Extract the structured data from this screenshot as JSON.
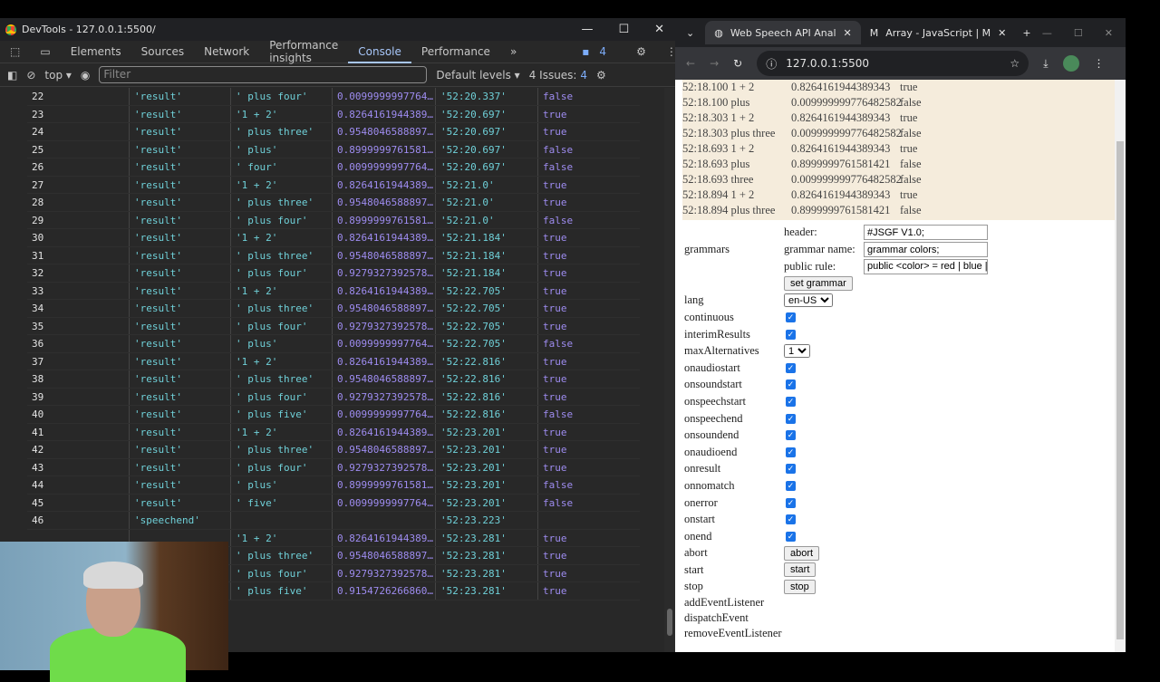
{
  "devtools": {
    "title": "DevTools - 127.0.0.1:5500/",
    "tabs": [
      "Elements",
      "Sources",
      "Network",
      "Performance insights",
      "Console",
      "Performance"
    ],
    "active_tab": "Console",
    "issues_badge": "4",
    "context": "top",
    "filter_placeholder": "Filter",
    "levels": "Default levels",
    "issues_label": "4 Issues:",
    "issues_count": "4",
    "rows": [
      [
        "22",
        "'result'",
        "' plus four'",
        "0.0099999997764…",
        "'52:20.337'",
        "false"
      ],
      [
        "23",
        "'result'",
        "'1 + 2'",
        "0.8264161944389…",
        "'52:20.697'",
        "true"
      ],
      [
        "24",
        "'result'",
        "' plus three'",
        "0.9548046588897…",
        "'52:20.697'",
        "true"
      ],
      [
        "25",
        "'result'",
        "' plus'",
        "0.8999999761581…",
        "'52:20.697'",
        "false"
      ],
      [
        "26",
        "'result'",
        "' four'",
        "0.0099999997764…",
        "'52:20.697'",
        "false"
      ],
      [
        "27",
        "'result'",
        "'1 + 2'",
        "0.8264161944389…",
        "'52:21.0'",
        "true"
      ],
      [
        "28",
        "'result'",
        "' plus three'",
        "0.9548046588897…",
        "'52:21.0'",
        "true"
      ],
      [
        "29",
        "'result'",
        "' plus four'",
        "0.8999999761581…",
        "'52:21.0'",
        "false"
      ],
      [
        "30",
        "'result'",
        "'1 + 2'",
        "0.8264161944389…",
        "'52:21.184'",
        "true"
      ],
      [
        "31",
        "'result'",
        "' plus three'",
        "0.9548046588897…",
        "'52:21.184'",
        "true"
      ],
      [
        "32",
        "'result'",
        "' plus four'",
        "0.9279327392578…",
        "'52:21.184'",
        "true"
      ],
      [
        "33",
        "'result'",
        "'1 + 2'",
        "0.8264161944389…",
        "'52:22.705'",
        "true"
      ],
      [
        "34",
        "'result'",
        "' plus three'",
        "0.9548046588897…",
        "'52:22.705'",
        "true"
      ],
      [
        "35",
        "'result'",
        "' plus four'",
        "0.9279327392578…",
        "'52:22.705'",
        "true"
      ],
      [
        "36",
        "'result'",
        "' plus'",
        "0.0099999997764…",
        "'52:22.705'",
        "false"
      ],
      [
        "37",
        "'result'",
        "'1 + 2'",
        "0.8264161944389…",
        "'52:22.816'",
        "true"
      ],
      [
        "38",
        "'result'",
        "' plus three'",
        "0.9548046588897…",
        "'52:22.816'",
        "true"
      ],
      [
        "39",
        "'result'",
        "' plus four'",
        "0.9279327392578…",
        "'52:22.816'",
        "true"
      ],
      [
        "40",
        "'result'",
        "' plus five'",
        "0.0099999997764…",
        "'52:22.816'",
        "false"
      ],
      [
        "41",
        "'result'",
        "'1 + 2'",
        "0.8264161944389…",
        "'52:23.201'",
        "true"
      ],
      [
        "42",
        "'result'",
        "' plus three'",
        "0.9548046588897…",
        "'52:23.201'",
        "true"
      ],
      [
        "43",
        "'result'",
        "' plus four'",
        "0.9279327392578…",
        "'52:23.201'",
        "true"
      ],
      [
        "44",
        "'result'",
        "' plus'",
        "0.8999999761581…",
        "'52:23.201'",
        "false"
      ],
      [
        "45",
        "'result'",
        "' five'",
        "0.0099999997764…",
        "'52:23.201'",
        "false"
      ],
      [
        "46",
        "'speechend'",
        "",
        "",
        "'52:23.223'",
        ""
      ],
      [
        "",
        "",
        "'1 + 2'",
        "0.8264161944389…",
        "'52:23.281'",
        "true"
      ],
      [
        "",
        "",
        "' plus three'",
        "0.9548046588897…",
        "'52:23.281'",
        "true"
      ],
      [
        "",
        "",
        "' plus four'",
        "0.9279327392578…",
        "'52:23.281'",
        "true"
      ],
      [
        "",
        "",
        "' plus five'",
        "0.9154726266860…",
        "'52:23.281'",
        "true"
      ]
    ]
  },
  "browser": {
    "tabs": [
      "Web Speech API Anal",
      "Array - JavaScript | M"
    ],
    "url": "127.0.0.1:5500",
    "log": [
      [
        "52:18.100 1 + 2",
        "0.8264161944389343",
        "true"
      ],
      [
        "52:18.100 plus",
        "0.009999999776482582",
        "false"
      ],
      [
        "52:18.303 1 + 2",
        "0.8264161944389343",
        "true"
      ],
      [
        "52:18.303 plus three",
        "0.009999999776482582",
        "false"
      ],
      [
        "52:18.693 1 + 2",
        "0.8264161944389343",
        "true"
      ],
      [
        "52:18.693 plus",
        "0.8999999761581421",
        "false"
      ],
      [
        "52:18.693 three",
        "0.009999999776482582",
        "false"
      ],
      [
        "52:18.894 1 + 2",
        "0.8264161944389343",
        "true"
      ],
      [
        "52:18.894 plus three",
        "0.8999999761581421",
        "false"
      ]
    ],
    "grammars": {
      "label": "grammars",
      "header_label": "header:",
      "header_value": "#JSGF V1.0;",
      "name_label": "grammar name:",
      "name_value": "grammar colors;",
      "rule_label": "public rule:",
      "rule_value": "public <color> = red | blue | g",
      "button": "set grammar"
    },
    "lang": {
      "label": "lang",
      "value": "en-US"
    },
    "max_alt": {
      "label": "maxAlternatives",
      "value": "1"
    },
    "checks": [
      "continuous",
      "interimResults"
    ],
    "events": [
      "onaudiostart",
      "onsoundstart",
      "onspeechstart",
      "onspeechend",
      "onsoundend",
      "onaudioend",
      "onresult",
      "onnomatch",
      "onerror",
      "onstart",
      "onend"
    ],
    "methods": [
      [
        "abort",
        "abort"
      ],
      [
        "start",
        "start"
      ],
      [
        "stop",
        "stop"
      ]
    ],
    "listeners": [
      "addEventListener",
      "dispatchEvent",
      "removeEventListener"
    ]
  }
}
